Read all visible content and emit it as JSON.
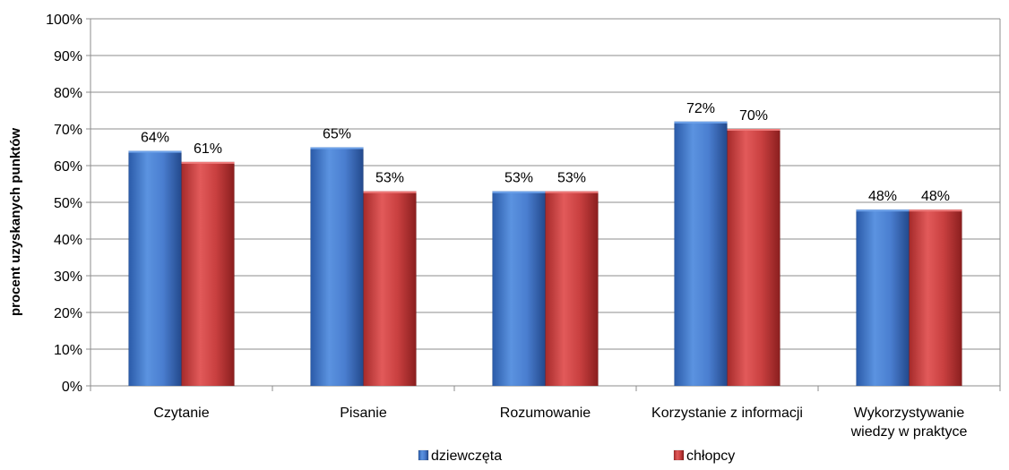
{
  "chart_data": {
    "type": "bar",
    "title": "",
    "xlabel": "",
    "ylabel": "procent uzyskanych punktów",
    "ylim": [
      0,
      100
    ],
    "yticks": [
      "0%",
      "10%",
      "20%",
      "30%",
      "40%",
      "50%",
      "60%",
      "70%",
      "80%",
      "90%",
      "100%"
    ],
    "grid": true,
    "legend_position": "bottom",
    "categories": [
      [
        "Czytanie"
      ],
      [
        "Pisanie"
      ],
      [
        "Rozumowanie"
      ],
      [
        "Korzystanie z informacji"
      ],
      [
        "Wykorzystywanie",
        "wiedzy w praktyce"
      ]
    ],
    "series": [
      {
        "name": "dziewczęta",
        "color": "#4a7ed0",
        "values": [
          64,
          65,
          53,
          72,
          48
        ],
        "labels": [
          "64%",
          "65%",
          "53%",
          "72%",
          "48%"
        ]
      },
      {
        "name": "chłopcy",
        "color": "#c94040",
        "values": [
          61,
          53,
          53,
          70,
          48
        ],
        "labels": [
          "61%",
          "53%",
          "53%",
          "70%",
          "48%"
        ]
      }
    ]
  }
}
